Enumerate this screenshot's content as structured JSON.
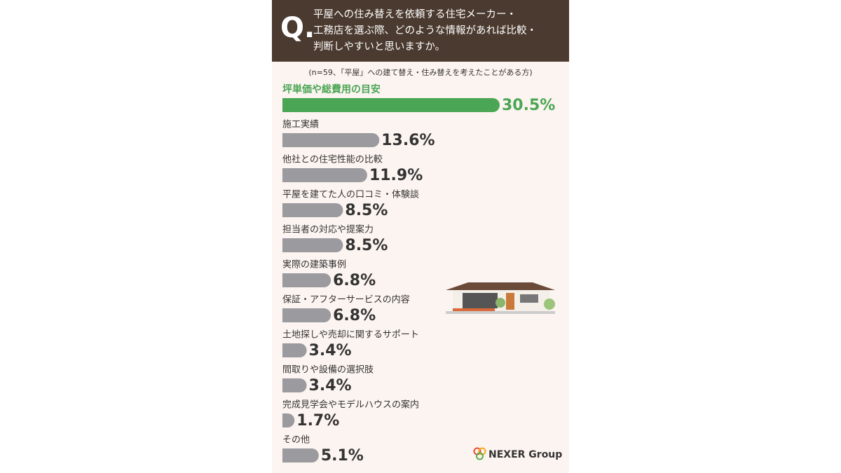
{
  "chart_data": {
    "type": "hbar",
    "question_mark": "Q.",
    "title": [
      "平屋への住み替えを依頼する住宅メーカー・",
      "工務店を選ぶ際、どのような情報があれば比較・",
      "判断しやすいと思いますか。"
    ],
    "subtitle": "(n=59、「平屋」への建て替え・住み替えを考えたことがある方)",
    "categories": [
      "坪単価や総費用の目安",
      "施工実績",
      "他社との住宅性能の比較",
      "平屋を建てた人の口コミ・体験談",
      "担当者の対応や提案力",
      "実際の建築事例",
      "保証・アフターサービスの内容",
      "土地探しや売却に関するサポート",
      "間取りや設備の選択肢",
      "完成見学会やモデルハウスの案内",
      "その他"
    ],
    "values": [
      30.5,
      13.6,
      11.9,
      8.5,
      8.5,
      6.8,
      6.8,
      3.4,
      3.4,
      1.7,
      5.1
    ],
    "value_labels": [
      "30.5%",
      "13.6%",
      "11.9%",
      "8.5%",
      "8.5%",
      "6.8%",
      "6.8%",
      "3.4%",
      "3.4%",
      "1.7%",
      "5.1%"
    ],
    "colors": [
      "#4aa654",
      "#9b9a9f",
      "#9b9a9f",
      "#9b9a9f",
      "#9b9a9f",
      "#9b9a9f",
      "#9b9a9f",
      "#9b9a9f",
      "#9b9a9f",
      "#9b9a9f",
      "#9b9a9f"
    ],
    "logo": "NEXER Group"
  }
}
